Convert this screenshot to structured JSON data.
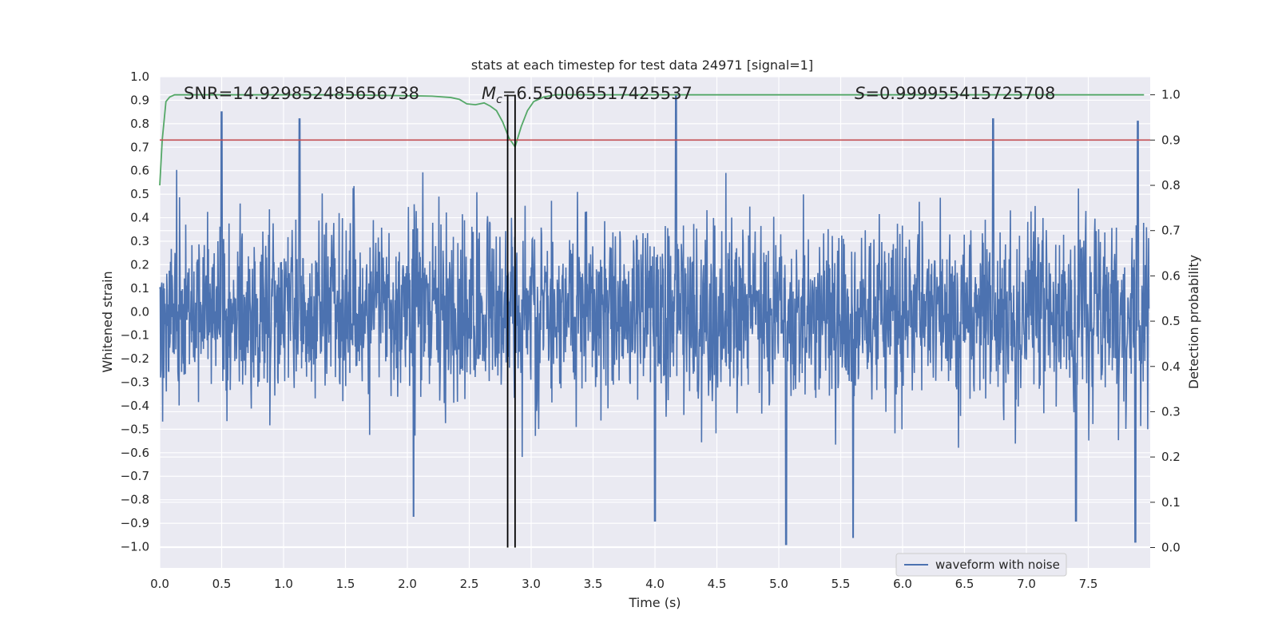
{
  "chart_data": {
    "type": "line",
    "title": "stats at each timestep for test data 24971 [signal=1]",
    "xlabel": "Time (s)",
    "ylabel": "Whitened strain",
    "y2label": "Detection probability",
    "xlim": [
      0,
      8
    ],
    "ylim": [
      -1.09,
      1.0
    ],
    "y2lim": [
      -0.045,
      1.04
    ],
    "xticks": [
      "0.0",
      "0.5",
      "1.0",
      "1.5",
      "2.0",
      "2.5",
      "3.0",
      "3.5",
      "4.0",
      "4.5",
      "5.0",
      "5.5",
      "6.0",
      "6.5",
      "7.0",
      "7.5"
    ],
    "yticks": [
      "1.0",
      "0.9",
      "0.8",
      "0.7",
      "0.6",
      "0.5",
      "0.4",
      "0.3",
      "0.2",
      "0.1",
      "0.0",
      "−0.1",
      "−0.2",
      "−0.3",
      "−0.4",
      "−0.5",
      "−0.6",
      "−0.7",
      "−0.8",
      "−0.9",
      "−1.0"
    ],
    "y2ticks": [
      "1.0",
      "0.9",
      "0.8",
      "0.7",
      "0.6",
      "0.5",
      "0.4",
      "0.3",
      "0.2",
      "0.1",
      "0.0"
    ],
    "grid": true,
    "legend": {
      "entries": [
        "waveform with noise"
      ],
      "location": "lower-right"
    },
    "annotations": {
      "snr": "SNR=14.929852485656738",
      "mc_symbol": "M",
      "mc_sub": "c",
      "mc_value": "=6.550065517425537",
      "s_symbol": "S",
      "s_value": "=0.999955415725708"
    },
    "threshold": 0.9,
    "vlines": [
      2.81,
      2.87
    ],
    "series": [
      {
        "name": "waveform with noise",
        "axis": "left",
        "color": "#4c72b0",
        "envelope_approx": {
          "typical_abs": 0.35,
          "peak_max": [
            [
              0.5,
              0.85
            ],
            [
              1.13,
              0.82
            ],
            [
              4.17,
              0.92
            ],
            [
              5.6,
              0.82
            ],
            [
              6.73,
              0.82
            ],
            [
              7.9,
              0.81
            ]
          ],
          "peak_min": [
            [
              2.05,
              -0.87
            ],
            [
              4.0,
              -0.89
            ],
            [
              5.06,
              -0.99
            ],
            [
              5.6,
              -0.96
            ],
            [
              7.4,
              -0.89
            ],
            [
              7.88,
              -0.98
            ]
          ]
        }
      },
      {
        "name": "detection probability",
        "axis": "right",
        "color": "#55a868",
        "x": [
          0.0,
          0.02,
          0.05,
          0.08,
          0.12,
          0.18,
          0.5,
          1.0,
          1.5,
          2.0,
          2.2,
          2.35,
          2.42,
          2.48,
          2.55,
          2.62,
          2.67,
          2.72,
          2.77,
          2.82,
          2.87,
          2.92,
          2.97,
          3.02,
          3.1,
          3.2,
          3.4,
          4.0,
          5.0,
          6.0,
          7.0,
          7.95
        ],
        "y": [
          0.8,
          0.9,
          0.985,
          0.995,
          1.0,
          1.0,
          1.0,
          1.0,
          1.0,
          0.998,
          0.997,
          0.994,
          0.99,
          0.98,
          0.978,
          0.982,
          0.975,
          0.965,
          0.94,
          0.905,
          0.885,
          0.93,
          0.965,
          0.985,
          0.995,
          1.0,
          1.0,
          1.0,
          1.0,
          1.0,
          1.0,
          1.0
        ]
      }
    ]
  }
}
